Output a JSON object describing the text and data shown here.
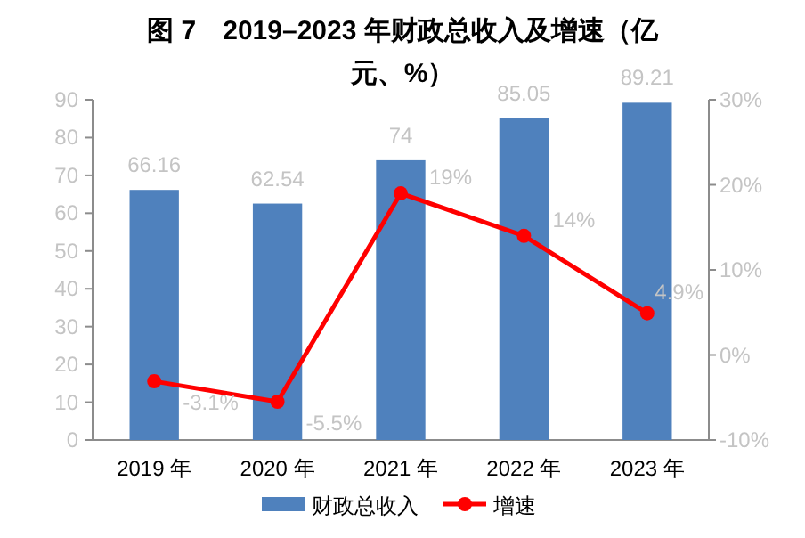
{
  "chart_data": {
    "type": "bar",
    "title": "图 7　2019–2023 年财政总收入及增速（亿元、%）",
    "categories": [
      "2019 年",
      "2020 年",
      "2021 年",
      "2022 年",
      "2023 年"
    ],
    "series": [
      {
        "name": "财政总收入",
        "color": "#4f81bd",
        "values": [
          66.16,
          62.54,
          74,
          85.05,
          89.21
        ],
        "value_labels": [
          "66.16",
          "62.54",
          "74",
          "85.05",
          "89.21"
        ]
      },
      {
        "name": "增速",
        "type": "line",
        "axis": "y2",
        "color": "#ff0000",
        "values": [
          -3.1,
          -5.5,
          19,
          14,
          4.9
        ],
        "value_labels": [
          "-3.1%",
          "-5.5%",
          "19%",
          "14%",
          "4.9%"
        ]
      }
    ],
    "ylim": [
      0,
      90
    ],
    "yticks": [
      0,
      10,
      20,
      30,
      40,
      50,
      60,
      70,
      80,
      90
    ],
    "y2lim": [
      -10,
      30
    ],
    "y2ticks": [
      {
        "value": -10,
        "label": "-10%"
      },
      {
        "value": 0,
        "label": "0%"
      },
      {
        "value": 10,
        "label": "10%"
      },
      {
        "value": 20,
        "label": "20%"
      },
      {
        "value": 30,
        "label": "30%"
      }
    ],
    "grid": false,
    "legend": "bottom",
    "marker": "circle",
    "line_style": "solid"
  }
}
